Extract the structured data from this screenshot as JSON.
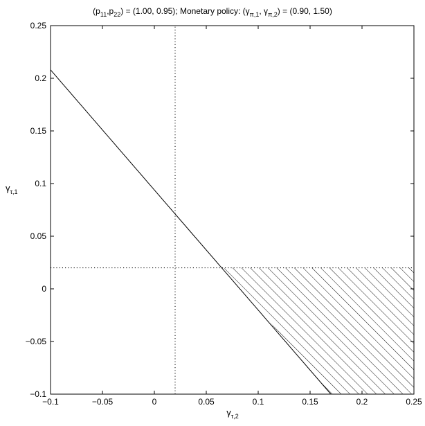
{
  "chart_data": {
    "type": "line",
    "title": {
      "p_symbol": "p",
      "p_sub_1": "11",
      "p_sub_2": "22",
      "p_values": ") = (1.00, 0.95); Monetary policy: (",
      "gamma_sub_1": "π,1",
      "gamma_sub_2": "π,2",
      "gamma_values": ") = (0.90, 1.50)"
    },
    "xlabel": {
      "symbol": "γ",
      "sub": "τ,2"
    },
    "ylabel": {
      "symbol": "γ",
      "sub": "τ,1"
    },
    "xlim": [
      -0.1,
      0.25
    ],
    "ylim": [
      -0.1,
      0.25
    ],
    "xticks": [
      -0.1,
      -0.05,
      0,
      0.05,
      0.1,
      0.15,
      0.2,
      0.25
    ],
    "xtick_labels": [
      "−0.1",
      "−0.05",
      "0",
      "0.05",
      "0.1",
      "0.15",
      "0.2",
      "0.25"
    ],
    "yticks": [
      -0.1,
      -0.05,
      0,
      0.05,
      0.1,
      0.15,
      0.2,
      0.25
    ],
    "ytick_labels": [
      "−0.1",
      "−0.05",
      "0",
      "0.05",
      "0.1",
      "0.15",
      "0.2",
      "0.25"
    ],
    "grid": false,
    "legend": "none",
    "series": [
      {
        "style": "solid",
        "color": "#000000",
        "x": [
          -0.1,
          0.17
        ],
        "y": [
          0.208,
          -0.1
        ]
      }
    ],
    "reference_lines": [
      {
        "orientation": "vertical",
        "value": 0.02,
        "style": "dotted",
        "span": [
          -0.1,
          0.25
        ]
      },
      {
        "orientation": "horizontal",
        "value": 0.02,
        "style": "dotted",
        "span": [
          -0.1,
          0.25
        ]
      }
    ],
    "hatched_region": {
      "polygon": [
        [
          0.0668,
          0.02
        ],
        [
          0.25,
          0.02
        ],
        [
          0.25,
          -0.1
        ],
        [
          0.17,
          -0.1
        ]
      ],
      "pattern": "diagonal-lines"
    }
  }
}
